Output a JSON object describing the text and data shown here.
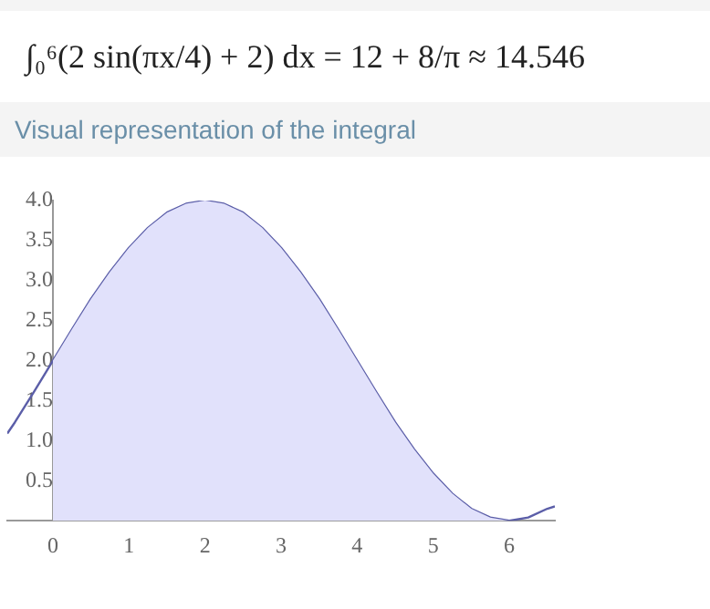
{
  "chart_data": {
    "type": "area",
    "title": "∫₀⁶(2 sin(πx/4) + 2) dx = 12 + 8/π ≈ 14.546",
    "subtitle": "Visual representation of the integral",
    "series": [
      {
        "color": "#e1e1fb",
        "x": [
          0,
          0.25,
          0.5,
          0.75,
          1,
          1.25,
          1.5,
          1.75,
          2,
          2.25,
          2.5,
          2.75,
          3,
          3.25,
          3.5,
          3.75,
          4,
          4.25,
          4.5,
          4.75,
          5,
          5.25,
          5.5,
          5.75,
          6
        ],
        "values": [
          2,
          2.39,
          2.77,
          3.11,
          3.41,
          3.66,
          3.85,
          3.96,
          4,
          3.96,
          3.85,
          3.66,
          3.41,
          3.11,
          2.77,
          2.39,
          2,
          1.61,
          1.23,
          0.89,
          0.59,
          0.34,
          0.15,
          0.04,
          0
        ]
      },
      {
        "type": "line",
        "color": "#5b5ea8",
        "x": [
          -0.6,
          -0.5,
          -0.25,
          0,
          0.25,
          0.5,
          0.75,
          1,
          1.25,
          1.5,
          1.75,
          2,
          2.25,
          2.5,
          2.75,
          3,
          3.25,
          3.5,
          3.75,
          4,
          4.25,
          4.5,
          4.75,
          5,
          5.25,
          5.5,
          5.75,
          6,
          6.25,
          6.5,
          6.6
        ],
        "values": [
          1.09,
          1.23,
          1.61,
          2,
          2.39,
          2.77,
          3.11,
          3.41,
          3.66,
          3.85,
          3.96,
          4,
          3.96,
          3.85,
          3.66,
          3.41,
          3.11,
          2.77,
          2.39,
          2,
          1.61,
          1.23,
          0.89,
          0.59,
          0.34,
          0.15,
          0.04,
          0,
          0.04,
          0.15,
          0.18
        ]
      }
    ],
    "xlim": [
      -0.6,
      6.6
    ],
    "xticks": [
      0,
      1,
      2,
      3,
      4,
      5,
      6
    ],
    "ylim": [
      0,
      4
    ],
    "yticks": [
      {
        "value": 0.5,
        "label": "0.5"
      },
      {
        "value": 1,
        "label": "1.0"
      },
      {
        "value": 1.5,
        "label": "1.5"
      },
      {
        "value": 2,
        "label": "2.0"
      },
      {
        "value": 2.5,
        "label": "2.5"
      },
      {
        "value": 3,
        "label": "3.0"
      },
      {
        "value": 3.5,
        "label": "3.5"
      },
      {
        "value": 4,
        "label": "4.0"
      }
    ],
    "grid": false,
    "legend": false,
    "marker": "none"
  }
}
